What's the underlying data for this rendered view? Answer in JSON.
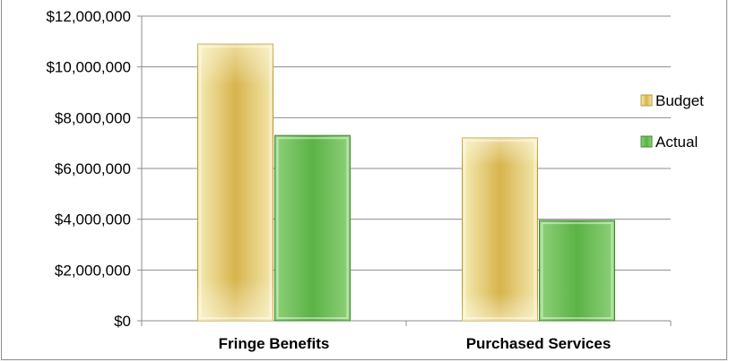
{
  "chart_data": {
    "type": "bar",
    "title": "",
    "xlabel": "",
    "ylabel": "",
    "categories": [
      "Fringe Benefits",
      "Purchased Services"
    ],
    "series": [
      {
        "name": "Budget",
        "values": [
          10900000,
          7200000
        ],
        "color": "#e0c96a"
      },
      {
        "name": "Actual",
        "values": [
          7300000,
          3950000
        ],
        "color": "#5fb84b"
      }
    ],
    "ylim": [
      0,
      12000000
    ],
    "yticks": [
      0,
      2000000,
      4000000,
      6000000,
      8000000,
      10000000,
      12000000
    ],
    "ytick_labels": [
      "$0",
      "$2,000,000",
      "$4,000,000",
      "$6,000,000",
      "$8,000,000",
      "$10,000,000",
      "$12,000,000"
    ],
    "grid": true,
    "legend_position": "right"
  }
}
